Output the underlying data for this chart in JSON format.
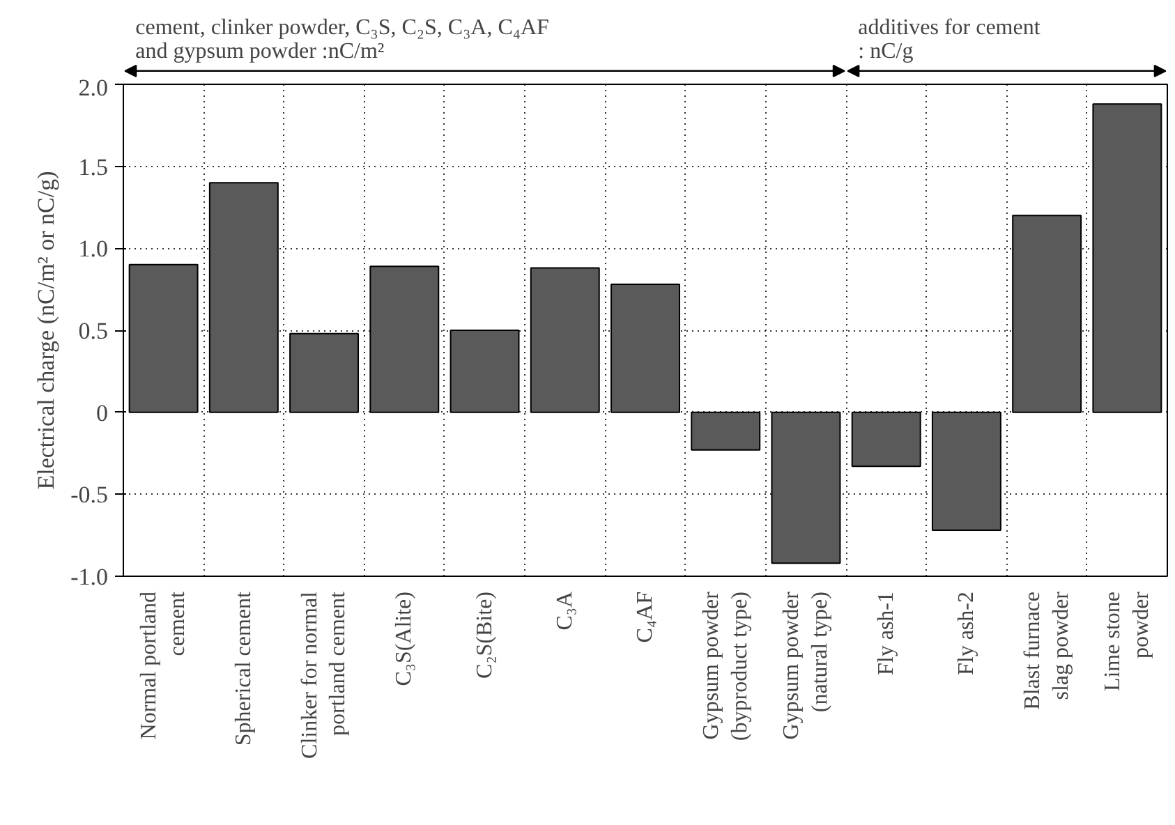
{
  "chart_data": {
    "type": "bar",
    "ylabel": "Electrical charge (nC/m² or nC/g)",
    "categories": [
      "Normal portland\ncement",
      "Spherical cement",
      "Clinker for normal\nportland cement",
      "C₃S(Alite)",
      "C₂S(Bite)",
      "C₃A",
      "C₄AF",
      "Gypsum powder\n(byproduct type)",
      "Gypsum powder\n(natural type)",
      "Fly ash-1",
      "Fly ash-2",
      "Blast furnace\nslag powder",
      "Lime stone\npowder"
    ],
    "values": [
      0.9,
      1.4,
      0.48,
      0.89,
      0.5,
      0.88,
      0.78,
      -0.23,
      -0.92,
      -0.33,
      -0.72,
      1.2,
      1.88
    ],
    "color": "#5a5a5a",
    "ylim": [
      -1.0,
      2.0
    ],
    "yticks": [
      {
        "value": -1.0,
        "label": "-1.0"
      },
      -0.5,
      0,
      0.5,
      {
        "value": 1.0,
        "label": "1.0"
      },
      1.5,
      {
        "value": 2.0,
        "label": "2.0"
      }
    ],
    "grid": true,
    "annotations": [
      "cement, clinker powder, C₃S, C₂S, C₃A, C₄AF\nand gypsum powder :nC/m²",
      "additives for cement\n: nC/g"
    ]
  }
}
